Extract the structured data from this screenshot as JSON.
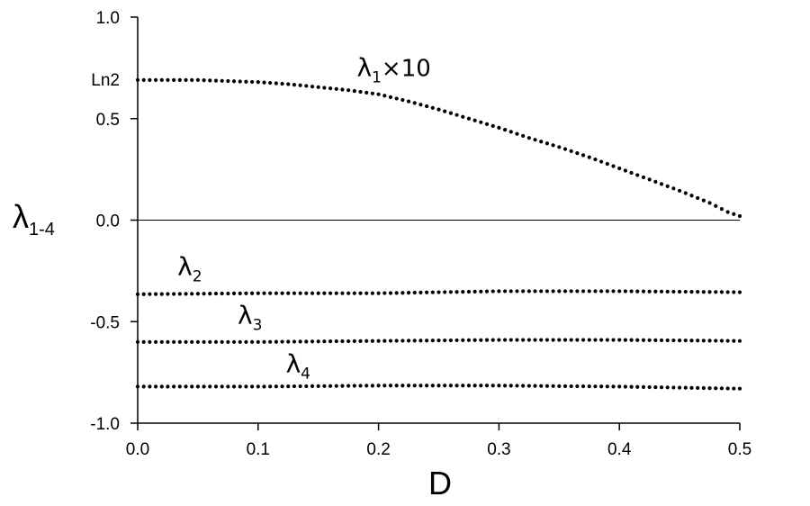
{
  "chart_data": {
    "type": "scatter",
    "title": "",
    "xlabel": "D",
    "ylabel": "λ",
    "ylabel_sub": "1-4",
    "xlim": [
      0.0,
      0.5
    ],
    "ylim": [
      -1.0,
      1.0
    ],
    "x_ticks": [
      "0.0",
      "0.1",
      "0.2",
      "0.3",
      "0.4",
      "0.5"
    ],
    "y_ticks": [
      "1.0",
      "0.5",
      "0.0",
      "-0.5",
      "-1.0"
    ],
    "reference_line": {
      "y": 0.0
    },
    "ln2_label": "Ln2",
    "ln2_value": 0.693,
    "grid": false,
    "legend": "none",
    "annotations": [
      {
        "base": "λ",
        "sub": "1",
        "suffix": "×10",
        "x": 0.182,
        "y": 0.71
      },
      {
        "base": "λ",
        "sub": "2",
        "suffix": "",
        "x": 0.033,
        "y": -0.27
      },
      {
        "base": "λ",
        "sub": "3",
        "suffix": "",
        "x": 0.083,
        "y": -0.51
      },
      {
        "base": "λ",
        "sub": "4",
        "suffix": "",
        "x": 0.123,
        "y": -0.75
      }
    ],
    "series": [
      {
        "label": "λ1×10",
        "points": [
          [
            0.0,
            0.69
          ],
          [
            0.025,
            0.69
          ],
          [
            0.05,
            0.69
          ],
          [
            0.075,
            0.685
          ],
          [
            0.1,
            0.68
          ],
          [
            0.125,
            0.67
          ],
          [
            0.15,
            0.655
          ],
          [
            0.175,
            0.64
          ],
          [
            0.2,
            0.62
          ],
          [
            0.225,
            0.585
          ],
          [
            0.25,
            0.545
          ],
          [
            0.275,
            0.5
          ],
          [
            0.3,
            0.455
          ],
          [
            0.325,
            0.405
          ],
          [
            0.35,
            0.36
          ],
          [
            0.375,
            0.31
          ],
          [
            0.4,
            0.255
          ],
          [
            0.425,
            0.2
          ],
          [
            0.45,
            0.145
          ],
          [
            0.475,
            0.085
          ],
          [
            0.49,
            0.04
          ],
          [
            0.5,
            0.02
          ]
        ]
      },
      {
        "label": "λ2",
        "points": [
          [
            0.0,
            -0.365
          ],
          [
            0.1,
            -0.36
          ],
          [
            0.2,
            -0.36
          ],
          [
            0.3,
            -0.35
          ],
          [
            0.4,
            -0.35
          ],
          [
            0.5,
            -0.355
          ]
        ]
      },
      {
        "label": "λ3",
        "points": [
          [
            0.0,
            -0.6
          ],
          [
            0.1,
            -0.6
          ],
          [
            0.2,
            -0.595
          ],
          [
            0.3,
            -0.59
          ],
          [
            0.4,
            -0.59
          ],
          [
            0.5,
            -0.595
          ]
        ]
      },
      {
        "label": "λ4",
        "points": [
          [
            0.0,
            -0.82
          ],
          [
            0.1,
            -0.82
          ],
          [
            0.2,
            -0.815
          ],
          [
            0.3,
            -0.815
          ],
          [
            0.4,
            -0.82
          ],
          [
            0.5,
            -0.83
          ]
        ]
      }
    ]
  }
}
